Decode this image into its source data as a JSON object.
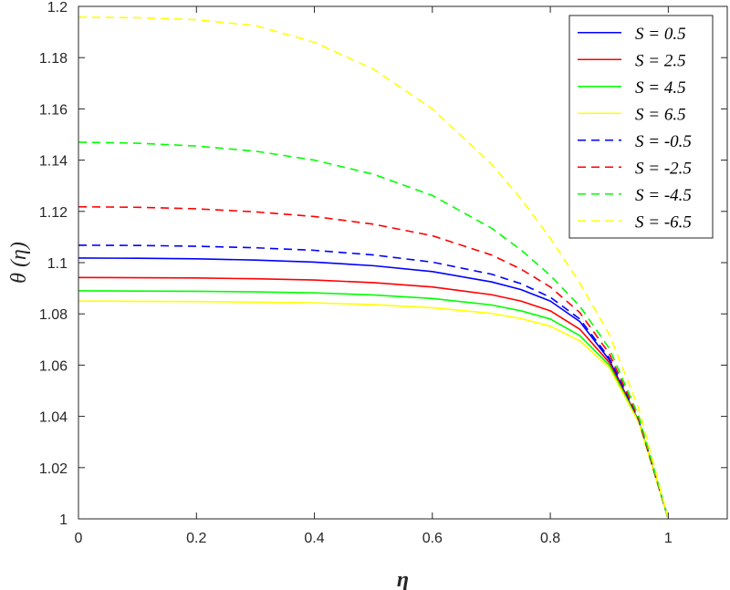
{
  "chart_data": {
    "type": "line",
    "title": "",
    "xlabel": "η",
    "ylabel": "θ (η)",
    "xlim": [
      0,
      1.1
    ],
    "ylim": [
      1,
      1.2
    ],
    "xticks": [
      0,
      0.2,
      0.4,
      0.6,
      0.8,
      1
    ],
    "xtick_labels": [
      "0",
      "0.2",
      "0.4",
      "0.6",
      "0.8",
      "1"
    ],
    "yticks": [
      1,
      1.02,
      1.04,
      1.06,
      1.08,
      1.1,
      1.12,
      1.14,
      1.16,
      1.18,
      1.2
    ],
    "ytick_labels": [
      "1",
      "1.02",
      "1.04",
      "1.06",
      "1.08",
      "1.1",
      "1.12",
      "1.14",
      "1.16",
      "1.18",
      "1.2"
    ],
    "grid": false,
    "legend_position": "top-right",
    "x": [
      0,
      0.1,
      0.2,
      0.3,
      0.4,
      0.5,
      0.6,
      0.7,
      0.75,
      0.8,
      0.85,
      0.9,
      0.95,
      1.0
    ],
    "series": [
      {
        "name": "S = 0.5",
        "color": "#0000ff",
        "style": "solid",
        "values": [
          1.1018,
          1.1017,
          1.1015,
          1.101,
          1.1002,
          1.0988,
          1.0965,
          1.0925,
          1.0895,
          1.085,
          1.077,
          1.062,
          1.038,
          1.0
        ]
      },
      {
        "name": "S = 2.5",
        "color": "#ff0000",
        "style": "solid",
        "values": [
          1.0942,
          1.0941,
          1.094,
          1.0937,
          1.0932,
          1.0922,
          1.0905,
          1.0875,
          1.085,
          1.0812,
          1.074,
          1.061,
          1.038,
          1.0
        ]
      },
      {
        "name": "S = 4.5",
        "color": "#00ff00",
        "style": "solid",
        "values": [
          1.089,
          1.0889,
          1.0888,
          1.0886,
          1.0882,
          1.0874,
          1.086,
          1.0835,
          1.0812,
          1.078,
          1.0715,
          1.06,
          1.0378,
          1.0
        ]
      },
      {
        "name": "S = 6.5",
        "color": "#ffff00",
        "style": "solid",
        "values": [
          1.085,
          1.0849,
          1.0848,
          1.0846,
          1.0843,
          1.0836,
          1.0824,
          1.0802,
          1.0782,
          1.0752,
          1.0695,
          1.059,
          1.0375,
          1.0
        ]
      },
      {
        "name": "S = -0.5",
        "color": "#0000ff",
        "style": "dashed",
        "values": [
          1.1068,
          1.1067,
          1.1064,
          1.1058,
          1.1048,
          1.103,
          1.1002,
          1.0955,
          1.0918,
          1.0865,
          1.078,
          1.0628,
          1.0385,
          1.0
        ]
      },
      {
        "name": "S = -2.5",
        "color": "#ff0000",
        "style": "dashed",
        "values": [
          1.1218,
          1.1216,
          1.121,
          1.1198,
          1.118,
          1.115,
          1.1105,
          1.103,
          1.0975,
          1.0905,
          1.0805,
          1.0645,
          1.039,
          1.0
        ]
      },
      {
        "name": "S = -4.5",
        "color": "#00ff00",
        "style": "dashed",
        "values": [
          1.147,
          1.1466,
          1.1455,
          1.1435,
          1.14,
          1.1345,
          1.1262,
          1.1135,
          1.105,
          1.095,
          1.083,
          1.0665,
          1.04,
          1.0
        ]
      },
      {
        "name": "S = -6.5",
        "color": "#ffff00",
        "style": "dashed",
        "values": [
          1.1958,
          1.1956,
          1.1948,
          1.1925,
          1.186,
          1.1755,
          1.16,
          1.1385,
          1.125,
          1.1095,
          1.092,
          1.072,
          1.043,
          1.0
        ]
      }
    ]
  }
}
